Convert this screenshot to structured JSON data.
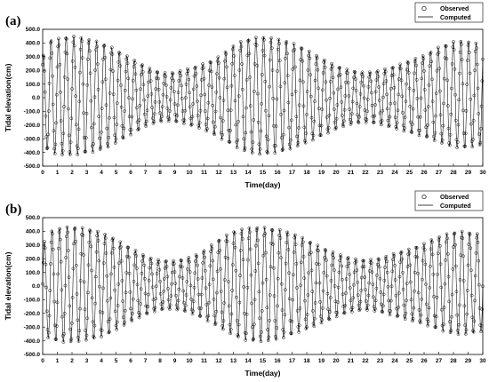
{
  "chart_data": [
    {
      "type": "line",
      "panel_label": "(a)",
      "xlabel": "Time(day)",
      "ylabel": "Tidal elevation(cm)",
      "xlim": [
        0,
        30
      ],
      "ylim": [
        -500,
        500
      ],
      "xticks": [
        "0",
        "1",
        "2",
        "3",
        "4",
        "5",
        "6",
        "7",
        "8",
        "9",
        "10",
        "11",
        "12",
        "13",
        "14",
        "15",
        "16",
        "17",
        "18",
        "19",
        "20",
        "21",
        "22",
        "23",
        "24",
        "25",
        "26",
        "27",
        "28",
        "29",
        "30"
      ],
      "yticks": [
        "500.0",
        "400.0",
        "300.0",
        "200.0",
        "100.0",
        "0.0",
        "-100.0",
        "-200.0",
        "-300.0",
        "-400.0",
        "-500.0"
      ],
      "legend_position": "top-right",
      "series": [
        {
          "name": "Observed",
          "style": "markers",
          "marker": "open-circle",
          "color": "#000000",
          "x": [
            0.0,
            0.5,
            1.0,
            1.5,
            2.0,
            2.5,
            3.0,
            3.5,
            4.0,
            4.5,
            5.0,
            5.5,
            6.0,
            6.5,
            7.0,
            7.5,
            8.0,
            8.5,
            9.0,
            9.5,
            10.0,
            10.5,
            11.0,
            11.5,
            12.0,
            12.5,
            13.0,
            13.5,
            14.0,
            14.5,
            15.0,
            15.5,
            16.0,
            16.5,
            17.0,
            17.5,
            18.0,
            18.5,
            19.0,
            19.5,
            20.0,
            20.5,
            21.0,
            21.5,
            22.0,
            22.5,
            23.0,
            23.5,
            24.0,
            24.5,
            25.0,
            25.5,
            26.0,
            26.5,
            27.0,
            27.5,
            28.0,
            28.5,
            29.0,
            29.5,
            30.0
          ],
          "high_water": [
            300,
            420,
            430,
            445,
            450,
            445,
            430,
            420,
            400,
            380,
            350,
            320,
            290,
            260,
            230,
            205,
            185,
            180,
            185,
            200,
            215,
            230,
            250,
            270,
            300,
            340,
            380,
            410,
            430,
            440,
            445,
            440,
            430,
            420,
            400,
            380,
            350,
            320,
            290,
            260,
            235,
            215,
            200,
            190,
            185,
            190,
            200,
            215,
            230,
            250,
            270,
            290,
            310,
            340,
            370,
            390,
            410,
            415,
            410,
            400,
            390
          ],
          "low_water": [
            -350,
            -400,
            -415,
            -420,
            -420,
            -415,
            -405,
            -395,
            -380,
            -360,
            -330,
            -300,
            -270,
            -240,
            -210,
            -190,
            -175,
            -170,
            -175,
            -185,
            -200,
            -215,
            -235,
            -260,
            -290,
            -320,
            -350,
            -380,
            -400,
            -410,
            -415,
            -410,
            -400,
            -390,
            -370,
            -350,
            -330,
            -305,
            -280,
            -255,
            -230,
            -210,
            -195,
            -185,
            -180,
            -185,
            -195,
            -210,
            -225,
            -240,
            -255,
            -270,
            -285,
            -305,
            -325,
            -345,
            -360,
            -370,
            -365,
            -355,
            -345
          ]
        },
        {
          "name": "Computed",
          "style": "line",
          "color": "#000000"
        }
      ]
    },
    {
      "type": "line",
      "panel_label": "(b)",
      "xlabel": "Time(day)",
      "ylabel": "Tidal elevation(cm)",
      "xlim": [
        0,
        30
      ],
      "ylim": [
        -500,
        500
      ],
      "xticks": [
        "0",
        "1",
        "2",
        "3",
        "4",
        "5",
        "6",
        "7",
        "8",
        "9",
        "10",
        "11",
        "12",
        "13",
        "14",
        "15",
        "16",
        "17",
        "18",
        "19",
        "20",
        "21",
        "22",
        "23",
        "24",
        "25",
        "26",
        "27",
        "28",
        "29",
        "30"
      ],
      "yticks": [
        "500.0",
        "400.0",
        "300.0",
        "200.0",
        "100.0",
        "0.0",
        "-100.0",
        "-200.0",
        "-300.0",
        "-400.0",
        "-500.0"
      ],
      "legend_position": "top-right",
      "series": [
        {
          "name": "Observed",
          "style": "markers",
          "marker": "open-circle",
          "color": "#000000",
          "x": [
            0.0,
            0.5,
            1.0,
            1.5,
            2.0,
            2.5,
            3.0,
            3.5,
            4.0,
            4.5,
            5.0,
            5.5,
            6.0,
            6.5,
            7.0,
            7.5,
            8.0,
            8.5,
            9.0,
            9.5,
            10.0,
            10.5,
            11.0,
            11.5,
            12.0,
            12.5,
            13.0,
            13.5,
            14.0,
            14.5,
            15.0,
            15.5,
            16.0,
            16.5,
            17.0,
            17.5,
            18.0,
            18.5,
            19.0,
            19.5,
            20.0,
            20.5,
            21.0,
            21.5,
            22.0,
            22.5,
            23.0,
            23.5,
            24.0,
            24.5,
            25.0,
            25.5,
            26.0,
            26.5,
            27.0,
            27.5,
            28.0,
            28.5,
            29.0,
            29.5,
            30.0
          ],
          "high_water": [
            300,
            400,
            420,
            430,
            435,
            430,
            420,
            410,
            390,
            370,
            340,
            310,
            280,
            250,
            220,
            200,
            190,
            185,
            185,
            195,
            210,
            230,
            260,
            300,
            340,
            370,
            400,
            415,
            425,
            430,
            430,
            425,
            415,
            405,
            385,
            365,
            340,
            310,
            285,
            260,
            240,
            220,
            205,
            195,
            190,
            195,
            205,
            220,
            240,
            255,
            270,
            290,
            310,
            340,
            360,
            380,
            395,
            400,
            395,
            385,
            375
          ],
          "low_water": [
            -340,
            -390,
            -405,
            -410,
            -410,
            -405,
            -395,
            -385,
            -370,
            -350,
            -320,
            -290,
            -260,
            -235,
            -210,
            -190,
            -175,
            -170,
            -170,
            -180,
            -195,
            -215,
            -240,
            -270,
            -300,
            -330,
            -360,
            -385,
            -400,
            -405,
            -405,
            -400,
            -390,
            -375,
            -355,
            -335,
            -315,
            -295,
            -270,
            -250,
            -225,
            -205,
            -190,
            -180,
            -175,
            -180,
            -190,
            -205,
            -220,
            -235,
            -250,
            -265,
            -280,
            -300,
            -320,
            -335,
            -350,
            -355,
            -350,
            -340,
            -330
          ]
        },
        {
          "name": "Computed",
          "style": "line",
          "color": "#000000"
        }
      ]
    }
  ]
}
